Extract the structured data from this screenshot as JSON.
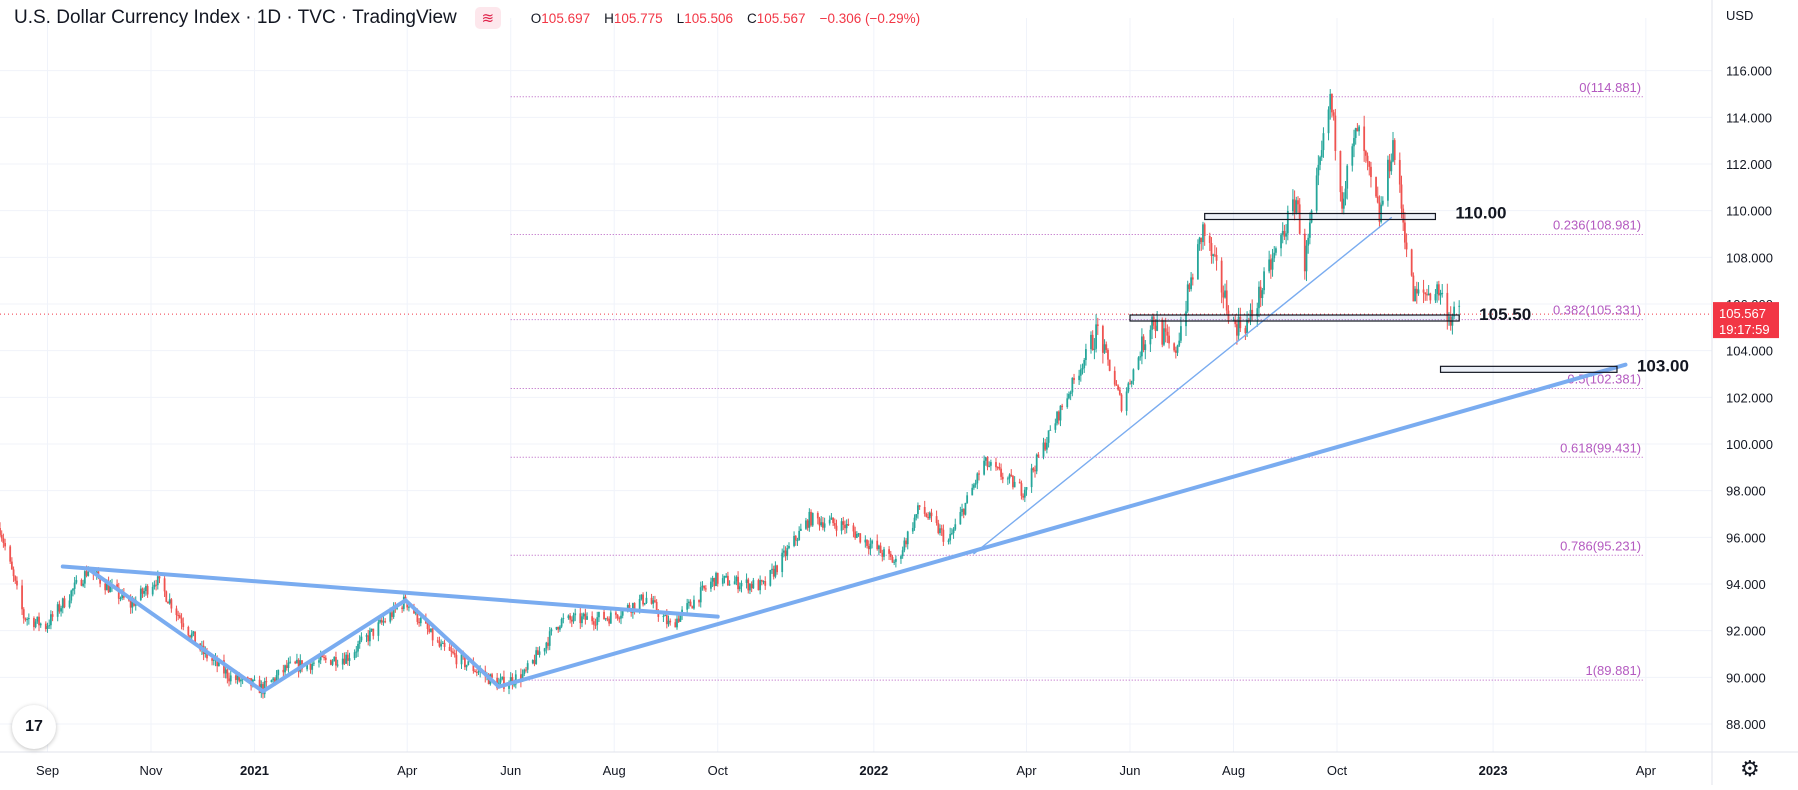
{
  "header": {
    "title": "U.S. Dollar Currency Index · 1D · TVC · TradingView",
    "ohlc": [
      {
        "label": "O",
        "value": "105.697"
      },
      {
        "label": "H",
        "value": "105.775"
      },
      {
        "label": "L",
        "value": "105.506"
      },
      {
        "label": "C",
        "value": "105.567"
      },
      {
        "label": "",
        "value": "−0.306 (−0.29%)"
      }
    ]
  },
  "branding": {
    "logo_text": "17",
    "settings_icon": "gear-icon"
  },
  "colors": {
    "up": "#26a69a",
    "down": "#ef5350",
    "fib": "#b45ac0",
    "trend": "#7aacf0",
    "price_label": "#f23645",
    "ticks": "#131722"
  },
  "chart_data": {
    "type": "candlestick",
    "currency": "USD",
    "y_range": [
      86.8,
      117.4
    ],
    "y_ticks": [
      88,
      90,
      92,
      94,
      96,
      98,
      100,
      102,
      104,
      106,
      108,
      110,
      112,
      114,
      116
    ],
    "y_tick_labels": [
      "88.000",
      "90.000",
      "92.000",
      "94.000",
      "96.000",
      "98.000",
      "100.000",
      "102.000",
      "104.000",
      "106.000",
      "108.000",
      "110.000",
      "112.000",
      "114.000",
      "116.000"
    ],
    "x_range": [
      "2020-08-04",
      "2023-05-10"
    ],
    "x_ticks": [
      {
        "date": "2020-09-01",
        "label": "Sep",
        "bold": false
      },
      {
        "date": "2020-11-01",
        "label": "Nov",
        "bold": false
      },
      {
        "date": "2021-01-01",
        "label": "2021",
        "bold": true
      },
      {
        "date": "2021-04-01",
        "label": "Apr",
        "bold": false
      },
      {
        "date": "2021-06-01",
        "label": "Jun",
        "bold": false
      },
      {
        "date": "2021-08-01",
        "label": "Aug",
        "bold": false
      },
      {
        "date": "2021-10-01",
        "label": "Oct",
        "bold": false
      },
      {
        "date": "2022-01-01",
        "label": "2022",
        "bold": true
      },
      {
        "date": "2022-04-01",
        "label": "Apr",
        "bold": false
      },
      {
        "date": "2022-06-01",
        "label": "Jun",
        "bold": false
      },
      {
        "date": "2022-08-01",
        "label": "Aug",
        "bold": false
      },
      {
        "date": "2022-10-01",
        "label": "Oct",
        "bold": false
      },
      {
        "date": "2023-01-01",
        "label": "2023",
        "bold": true
      },
      {
        "date": "2023-04-01",
        "label": "Apr",
        "bold": false
      }
    ],
    "price_path": [
      [
        "2020-08-04",
        96.4
      ],
      [
        "2020-08-18",
        92.6
      ],
      [
        "2020-08-31",
        92.2
      ],
      [
        "2020-09-25",
        94.6
      ],
      [
        "2020-10-20",
        93.1
      ],
      [
        "2020-11-04",
        94.2
      ],
      [
        "2020-12-01",
        91.1
      ],
      [
        "2020-12-18",
        90.0
      ],
      [
        "2021-01-06",
        89.5
      ],
      [
        "2021-01-20",
        90.4
      ],
      [
        "2021-02-25",
        90.9
      ],
      [
        "2021-03-31",
        93.3
      ],
      [
        "2021-04-20",
        91.3
      ],
      [
        "2021-05-25",
        89.7
      ],
      [
        "2021-06-09",
        90.1
      ],
      [
        "2021-06-30",
        92.4
      ],
      [
        "2021-07-30",
        92.6
      ],
      [
        "2021-08-20",
        93.4
      ],
      [
        "2021-09-03",
        92.2
      ],
      [
        "2021-09-29",
        94.2
      ],
      [
        "2021-10-28",
        93.9
      ],
      [
        "2021-11-24",
        96.8
      ],
      [
        "2021-12-15",
        96.5
      ],
      [
        "2022-01-14",
        94.9
      ],
      [
        "2022-01-28",
        97.3
      ],
      [
        "2022-02-14",
        95.8
      ],
      [
        "2022-03-07",
        99.2
      ],
      [
        "2022-03-30",
        98.0
      ],
      [
        "2022-05-13",
        104.9
      ],
      [
        "2022-05-27",
        101.7
      ],
      [
        "2022-06-14",
        105.4
      ],
      [
        "2022-06-27",
        103.8
      ],
      [
        "2022-07-14",
        109.2
      ],
      [
        "2022-08-01",
        105.1
      ],
      [
        "2022-08-10",
        105.2
      ],
      [
        "2022-09-07",
        110.5
      ],
      [
        "2022-09-12",
        107.7
      ],
      [
        "2022-09-27",
        114.8
      ],
      [
        "2022-10-04",
        110.6
      ],
      [
        "2022-10-13",
        113.5
      ],
      [
        "2022-10-26",
        109.7
      ],
      [
        "2022-11-03",
        112.9
      ],
      [
        "2022-11-15",
        106.3
      ],
      [
        "2022-11-30",
        106.6
      ],
      [
        "2022-12-07",
        105.4
      ],
      [
        "2022-12-12",
        105.57
      ]
    ],
    "last_price": {
      "value": 105.567,
      "label": "105.567",
      "countdown": "19:17:59"
    },
    "fibonacci": {
      "start": "2021-06-01",
      "end": "2023-03-31",
      "levels": [
        {
          "ratio": "0",
          "value": 114.881,
          "label": "0(114.881)"
        },
        {
          "ratio": "0.236",
          "value": 108.981,
          "label": "0.236(108.981)"
        },
        {
          "ratio": "0.382",
          "value": 105.331,
          "label": "0.382(105.331)"
        },
        {
          "ratio": "0.5",
          "value": 102.381,
          "label": "0.5(102.381)"
        },
        {
          "ratio": "0.618",
          "value": 99.431,
          "label": "0.618(99.431)"
        },
        {
          "ratio": "0.786",
          "value": 95.231,
          "label": "0.786(95.231)"
        },
        {
          "ratio": "1",
          "value": 89.881,
          "label": "1(89.881)"
        }
      ]
    },
    "trendlines": [
      {
        "from": [
          "2020-09-10",
          94.75
        ],
        "to": [
          "2021-10-01",
          92.6
        ],
        "weight": "thick"
      },
      {
        "from": [
          "2020-09-25",
          94.65
        ],
        "to": [
          "2021-01-06",
          89.4
        ],
        "weight": "thick"
      },
      {
        "from": [
          "2021-01-06",
          89.4
        ],
        "to": [
          "2021-03-31",
          93.3
        ],
        "weight": "thick"
      },
      {
        "from": [
          "2021-03-31",
          93.3
        ],
        "to": [
          "2021-05-25",
          89.6
        ],
        "weight": "thick"
      },
      {
        "from": [
          "2021-05-25",
          89.6
        ],
        "to": [
          "2023-03-20",
          103.4
        ],
        "weight": "thick"
      },
      {
        "from": [
          "2022-03-01",
          95.3
        ],
        "to": [
          "2022-11-02",
          109.7
        ],
        "weight": "thin"
      }
    ],
    "levels": [
      {
        "label": "110.00",
        "from": "2022-07-15",
        "to": "2022-11-28",
        "value": 109.75
      },
      {
        "label": "105.50",
        "from": "2022-06-01",
        "to": "2022-12-12",
        "value": 105.4
      },
      {
        "label": "103.00",
        "from": "2022-12-01",
        "to": "2023-03-15",
        "value": 103.2
      }
    ]
  }
}
